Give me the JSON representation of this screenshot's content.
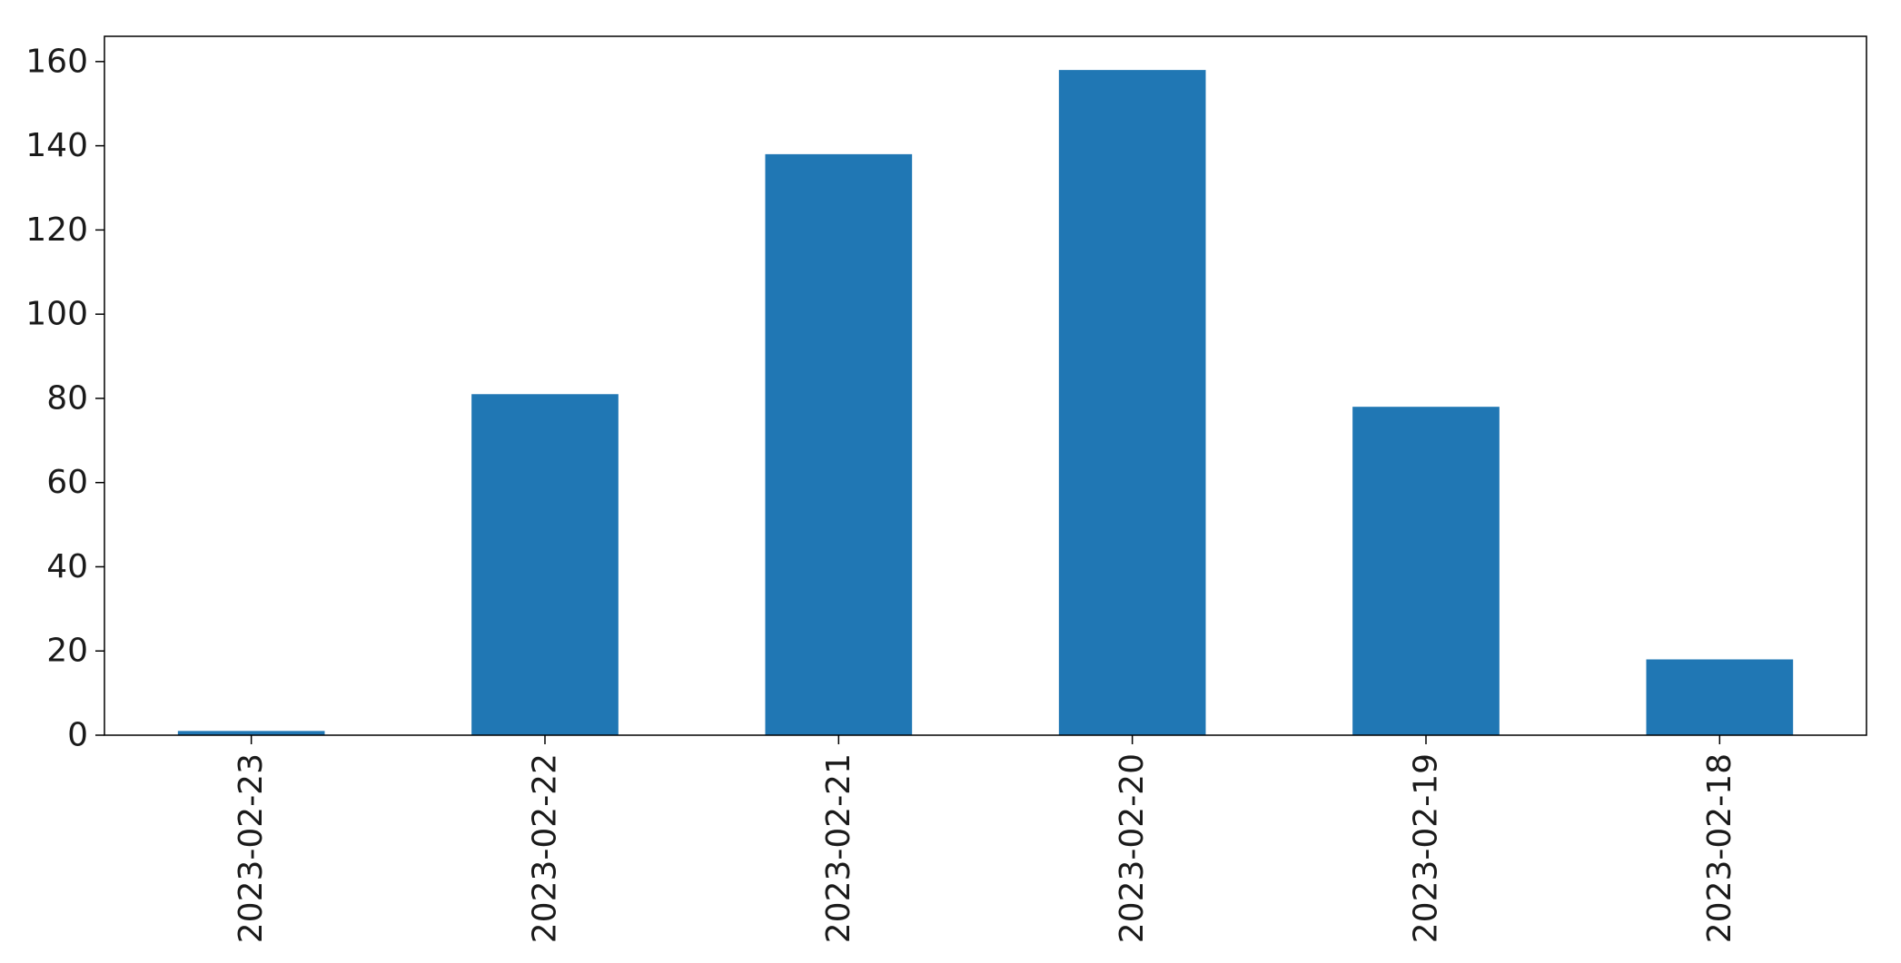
{
  "chart_data": {
    "type": "bar",
    "title": "",
    "xlabel": "",
    "ylabel": "",
    "categories": [
      "2023-02-23",
      "2023-02-22",
      "2023-02-21",
      "2023-02-20",
      "2023-02-19",
      "2023-02-18"
    ],
    "values": [
      1,
      81,
      138,
      158,
      78,
      18
    ],
    "ylim": [
      0,
      166
    ],
    "yticks": [
      0,
      20,
      40,
      60,
      80,
      100,
      120,
      140,
      160
    ],
    "x_tick_rotation": "vertical",
    "grid": false,
    "legend": "none",
    "bar_color": "#2077b4"
  }
}
